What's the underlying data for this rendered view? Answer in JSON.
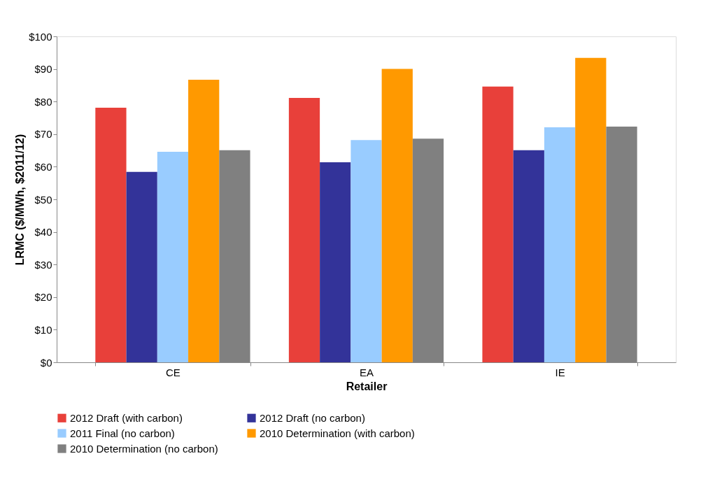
{
  "chart_data": {
    "type": "bar",
    "xlabel": "Retailer",
    "ylabel": "LRMC ($/MWh, $2011/12)",
    "categories": [
      "CE",
      "EA",
      "IE"
    ],
    "series": [
      {
        "name": "2012 Draft (with carbon)",
        "color": "#e8403a",
        "values": [
          78.1,
          81.1,
          84.6
        ]
      },
      {
        "name": "2012 Draft (no carbon)",
        "color": "#333399",
        "values": [
          58.4,
          61.4,
          65.1
        ]
      },
      {
        "name": "2011 Final (no carbon)",
        "color": "#99ccff",
        "values": [
          64.6,
          68.2,
          72.1
        ]
      },
      {
        "name": "2010 Determination (with carbon)",
        "color": "#ff9900",
        "values": [
          86.7,
          90.0,
          93.4
        ]
      },
      {
        "name": "2010 Determination (no carbon)",
        "color": "#808080",
        "values": [
          65.1,
          68.6,
          72.3
        ]
      }
    ],
    "ylim": [
      0,
      100
    ],
    "yticks": [
      {
        "value": 0,
        "label": "$0"
      },
      {
        "value": 10,
        "label": "$10"
      },
      {
        "value": 20,
        "label": "$20"
      },
      {
        "value": 30,
        "label": "$30"
      },
      {
        "value": 40,
        "label": "$40"
      },
      {
        "value": 50,
        "label": "$50"
      },
      {
        "value": 60,
        "label": "$60"
      },
      {
        "value": 70,
        "label": "$70"
      },
      {
        "value": 80,
        "label": "$80"
      },
      {
        "value": 90,
        "label": "$90"
      },
      {
        "value": 100,
        "label": "$100"
      }
    ],
    "grid": false,
    "legend": "bottom"
  }
}
